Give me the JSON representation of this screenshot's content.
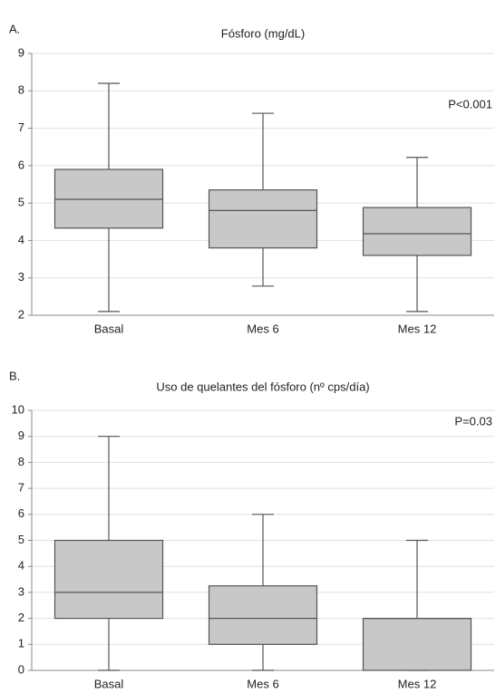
{
  "chart_data": [
    {
      "type": "box",
      "panel_label": "A.",
      "title": "Fósforo (mg/dL)",
      "annotation": "P<0.001",
      "categories": [
        "Basal",
        "Mes 6",
        "Mes 12"
      ],
      "boxes": [
        {
          "min": 2.1,
          "q1": 4.33,
          "median": 5.1,
          "q3": 5.9,
          "max": 8.2
        },
        {
          "min": 2.78,
          "q1": 3.8,
          "median": 4.8,
          "q3": 5.35,
          "max": 7.4
        },
        {
          "min": 2.1,
          "q1": 3.6,
          "median": 4.18,
          "q3": 4.88,
          "max": 6.22
        }
      ],
      "color": "#c8c8c8",
      "ylim": [
        2,
        9
      ],
      "yticks": [
        2,
        3,
        4,
        5,
        6,
        7,
        8,
        9
      ],
      "grid": true
    },
    {
      "type": "box",
      "panel_label": "B.",
      "title": "Uso de quelantes del fósforo (nº cps/día)",
      "annotation": "P=0.03",
      "categories": [
        "Basal",
        "Mes 6",
        "Mes 12"
      ],
      "boxes": [
        {
          "min": 0,
          "q1": 2,
          "median": 3,
          "q3": 5,
          "max": 9
        },
        {
          "min": 0,
          "q1": 1,
          "median": 2,
          "q3": 3.25,
          "max": 6
        },
        {
          "min": 0,
          "q1": 0,
          "median": 2,
          "q3": 2,
          "max": 5
        }
      ],
      "color": "#c8c8c8",
      "ylim": [
        0,
        10
      ],
      "yticks": [
        0,
        1,
        2,
        3,
        4,
        5,
        6,
        7,
        8,
        9,
        10
      ],
      "grid": true
    }
  ]
}
